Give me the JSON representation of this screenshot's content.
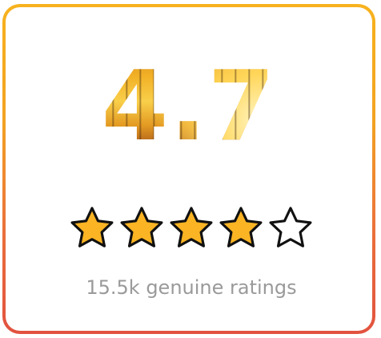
{
  "rating": {
    "value": "4.7",
    "stars_filled": 4,
    "stars_total": 5,
    "ratings_count_label": "15.5k genuine ratings"
  },
  "colors": {
    "border_top": "#f7b21d",
    "border_bottom": "#e2523f",
    "star_fill": "#fbb423",
    "star_outline": "#111111",
    "caption_text": "#9a9a9a"
  },
  "icons": {
    "filled_star": "star-filled-icon",
    "empty_star": "star-empty-icon"
  }
}
